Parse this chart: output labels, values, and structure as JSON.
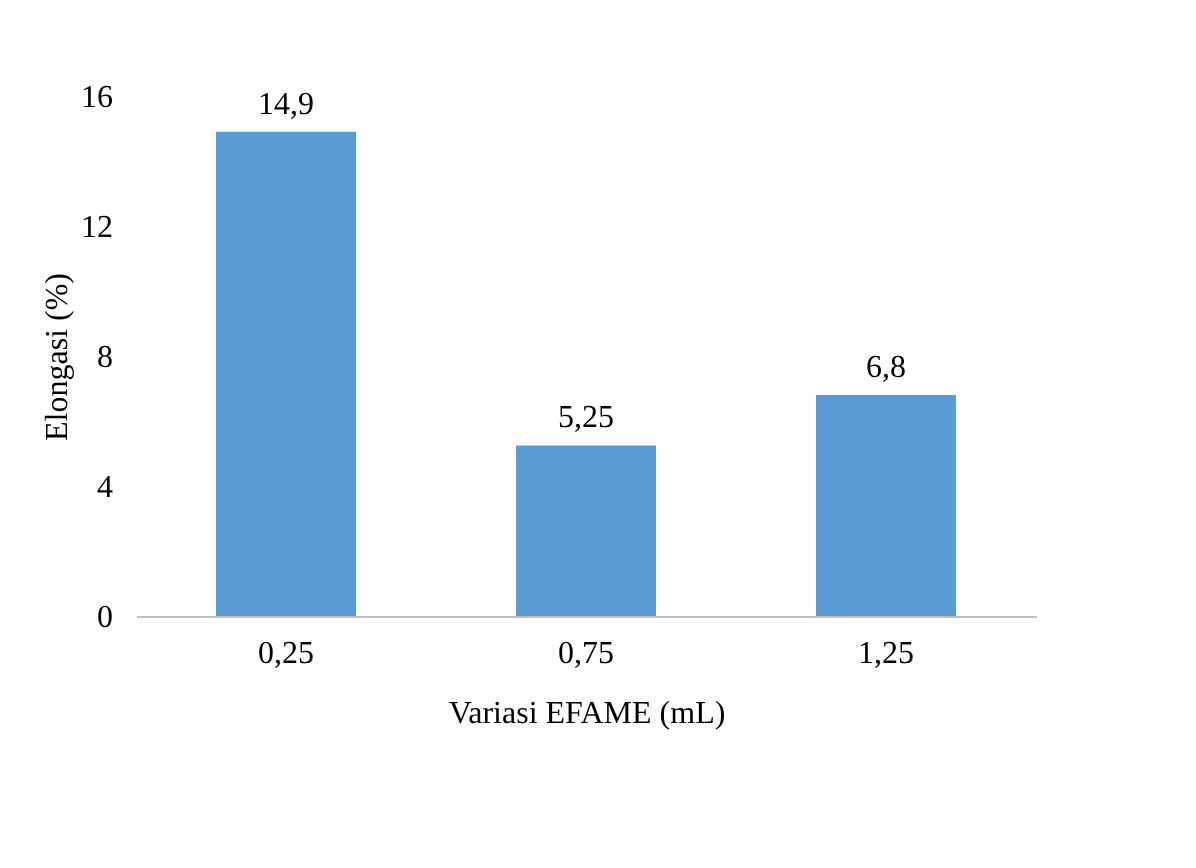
{
  "chart_data": {
    "type": "bar",
    "xlabel": "Variasi EFAME (mL)",
    "ylabel": "Elongasi (%)",
    "categories": [
      "0,25",
      "0,75",
      "1,25"
    ],
    "values": [
      14.9,
      5.25,
      6.8
    ],
    "value_labels": [
      "14,9",
      "5,25",
      "6,8"
    ],
    "color": "#5b9bd5",
    "ylim": [
      0,
      16
    ],
    "yticks": [
      0,
      4,
      8,
      12,
      16
    ],
    "grid": false
  }
}
